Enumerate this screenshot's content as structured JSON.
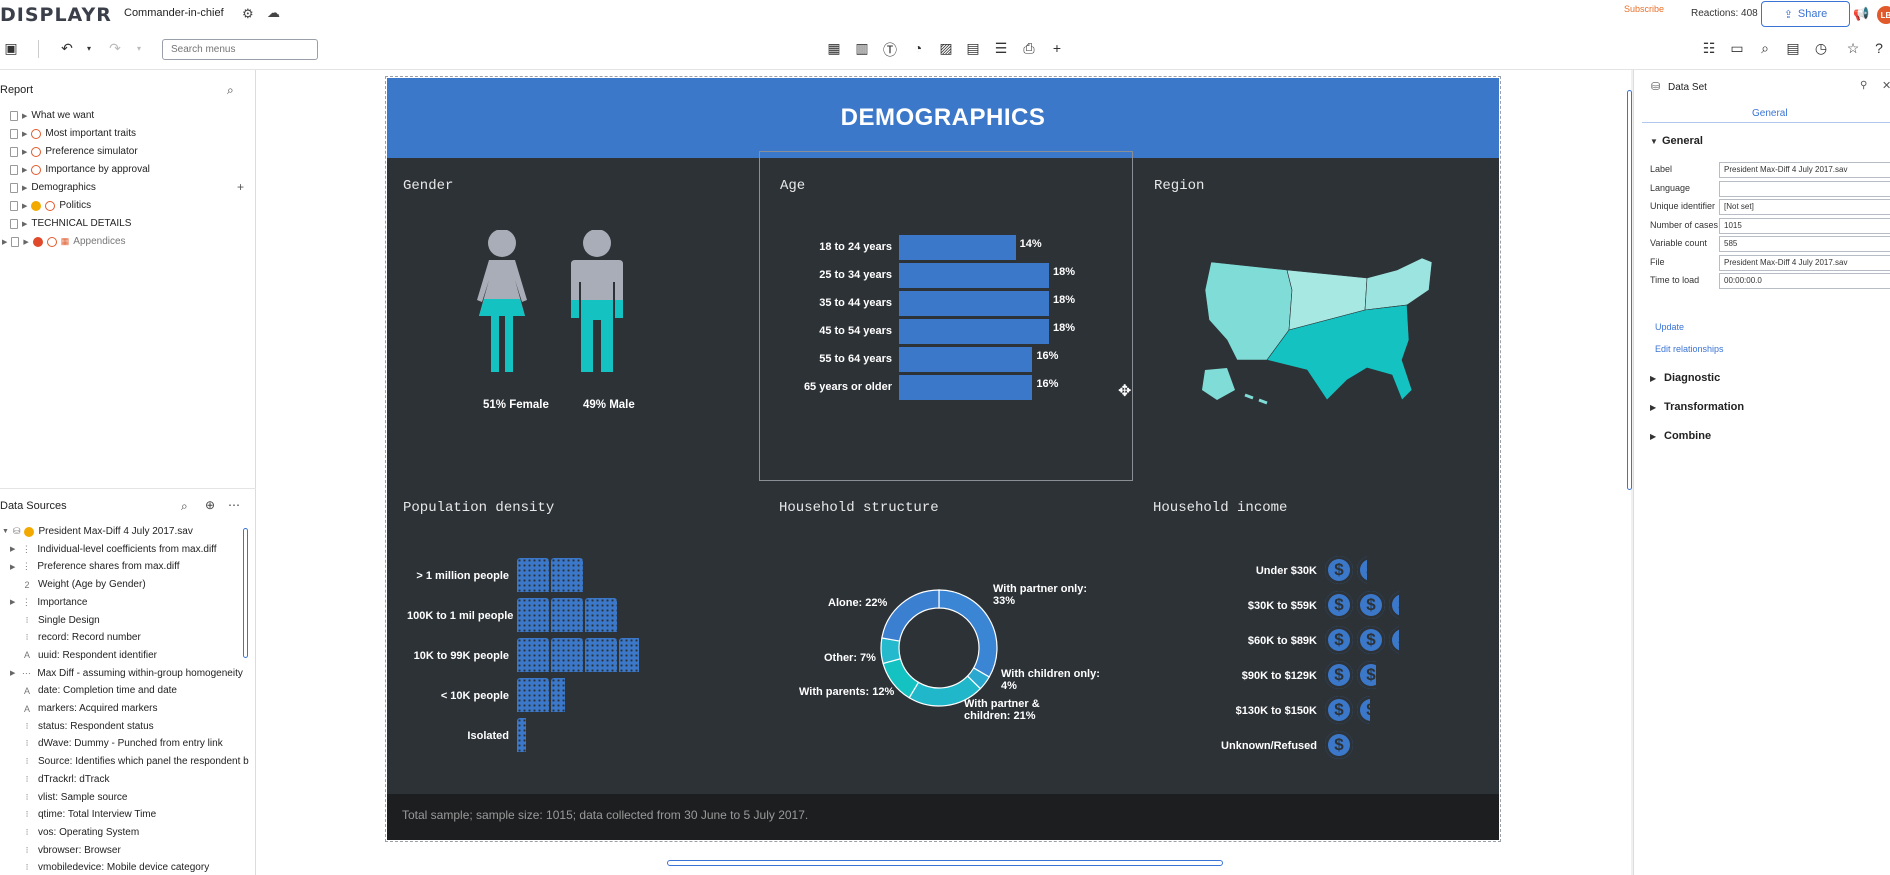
{
  "app": {
    "logo": "DISPLAYR",
    "doc_title": "Commander-in-chief",
    "subscribe": "Subscribe",
    "reactions": "Reactions: 408",
    "share": "Share",
    "avatar": "LB"
  },
  "toolbar": {
    "search_placeholder": "Search menus"
  },
  "report": {
    "title": "Report",
    "items": [
      {
        "label": "What we want"
      },
      {
        "label": "Most important traits"
      },
      {
        "label": "Preference simulator"
      },
      {
        "label": "Importance by approval"
      },
      {
        "label": "Demographics"
      },
      {
        "label": "Politics"
      },
      {
        "label": "TECHNICAL DETAILS"
      },
      {
        "label": "Appendices"
      }
    ]
  },
  "data_sources": {
    "title": "Data Sources",
    "items": [
      {
        "label": "President Max-Diff 4 July 2017.sav",
        "type": ""
      },
      {
        "label": "Individual-level coefficients from max.diff",
        "type": "⋮"
      },
      {
        "label": "Preference shares from max.diff",
        "type": "⋮"
      },
      {
        "label": "Weight (Age by Gender)",
        "type": "2"
      },
      {
        "label": "Importance",
        "type": "⋮"
      },
      {
        "label": "Single Design",
        "type": "⁝"
      },
      {
        "label": "record: Record number",
        "type": "⁝"
      },
      {
        "label": "uuid: Respondent identifier",
        "type": "A"
      },
      {
        "label": "Max Diff - assuming within-group homogeneity",
        "type": "⋯"
      },
      {
        "label": "date: Completion time and date",
        "type": "A"
      },
      {
        "label": "markers: Acquired markers",
        "type": "A"
      },
      {
        "label": "status: Respondent status",
        "type": "⁝"
      },
      {
        "label": "dWave: Dummy - Punched from entry link",
        "type": "⁝"
      },
      {
        "label": "Source: Identifies which panel the respondent b",
        "type": "⁝"
      },
      {
        "label": "dTrackrl: dTrack",
        "type": "⁝"
      },
      {
        "label": "vlist: Sample source",
        "type": "⁝"
      },
      {
        "label": "qtime: Total Interview Time",
        "type": "⁝"
      },
      {
        "label": "vos: Operating System",
        "type": "⁝"
      },
      {
        "label": "vbrowser: Browser",
        "type": "⁝"
      },
      {
        "label": "vmobiledevice: Mobile device category",
        "type": "⁝"
      }
    ]
  },
  "infographic": {
    "title": "DEMOGRAPHICS",
    "footer": "Total sample; sample size: 1015; data collected from 30 June to 5 July 2017.",
    "colors": {
      "blue": "#3b78c9",
      "teal": "#15c2c2",
      "gray": "#a8adb7",
      "bg": "#2d3237"
    },
    "gender": {
      "heading": "Gender",
      "female_label": "51% Female",
      "male_label": "49% Male",
      "female_value": 51,
      "male_value": 49
    },
    "age": {
      "heading": "Age",
      "rows": [
        {
          "label": "18 to 24 years",
          "value": 14,
          "text": "14%"
        },
        {
          "label": "25 to 34 years",
          "value": 18,
          "text": "18%"
        },
        {
          "label": "35 to 44 years",
          "value": 18,
          "text": "18%"
        },
        {
          "label": "45 to 54 years",
          "value": 18,
          "text": "18%"
        },
        {
          "label": "55 to 64 years",
          "value": 16,
          "text": "16%"
        },
        {
          "label": "65 years or older",
          "value": 16,
          "text": "16%"
        }
      ]
    },
    "region": {
      "heading": "Region"
    },
    "population": {
      "heading": "Population density",
      "rows": [
        {
          "label": "> 1 million people",
          "blocks": 2
        },
        {
          "label": "100K to 1 mil people",
          "blocks": 3
        },
        {
          "label": "10K to 99K people",
          "blocks": 3.6
        },
        {
          "label": "< 10K people",
          "blocks": 1.4
        },
        {
          "label": "Isolated",
          "blocks": 0.25
        }
      ]
    },
    "household": {
      "heading": "Household structure",
      "slices": [
        {
          "label": "With partner only: 33%",
          "value": 33
        },
        {
          "label": "With children only: 4%",
          "value": 4
        },
        {
          "label": "With partner & children: 21%",
          "value": 21
        },
        {
          "label": "With parents: 12%",
          "value": 12
        },
        {
          "label": "Other: 7%",
          "value": 7
        },
        {
          "label": "Alone: 22%",
          "value": 22
        }
      ]
    },
    "income": {
      "heading": "Household income",
      "rows": [
        {
          "label": "Under $30K",
          "icons": 1.3
        },
        {
          "label": "$30K to $59K",
          "icons": 2.3
        },
        {
          "label": "$60K to $89K",
          "icons": 2.3
        },
        {
          "label": "$90K to $129K",
          "icons": 1.6
        },
        {
          "label": "$130K to $150K",
          "icons": 1.4
        },
        {
          "label": "Unknown/Refused",
          "icons": 1
        }
      ]
    }
  },
  "dataset_panel": {
    "title": "Data Set",
    "tab": "General",
    "general_heading": "General",
    "fields": [
      {
        "label": "Label",
        "value": "President Max-Diff 4 July 2017.sav"
      },
      {
        "label": "Language",
        "value": ""
      },
      {
        "label": "Unique identifier",
        "value": "[Not set]"
      },
      {
        "label": "Number of cases",
        "value": "1015"
      },
      {
        "label": "Variable count",
        "value": "585"
      },
      {
        "label": "File",
        "value": "President Max-Diff 4 July 2017.sav"
      },
      {
        "label": "Time to load",
        "value": "00:00:00.0"
      }
    ],
    "update": "Update",
    "edit_relationships": "Edit relationships",
    "sections": [
      "Diagnostic",
      "Transformation",
      "Combine"
    ]
  }
}
